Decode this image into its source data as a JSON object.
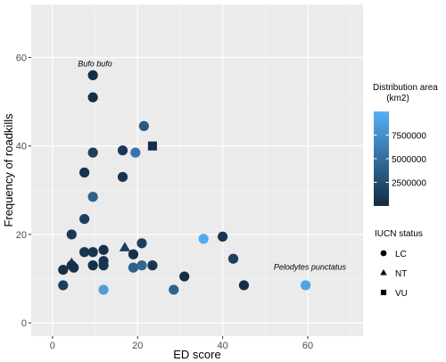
{
  "chart_data": {
    "type": "scatter",
    "xlabel": "ED score",
    "ylabel": "Frequency of roadkills",
    "xlim": [
      -5,
      73
    ],
    "ylim": [
      -3,
      72
    ],
    "x_ticks": [
      0,
      20,
      40,
      60
    ],
    "y_ticks": [
      0,
      20,
      40,
      60
    ],
    "grid": true,
    "panel_color": "#ebebeb",
    "annotations": [
      {
        "text": "Bufo bufo",
        "x": 10,
        "y": 58
      },
      {
        "text": "Pelodytes punctatus",
        "x": 60.5,
        "y": 12
      }
    ],
    "color_legend": {
      "title": "Distribution area\n(km2)",
      "min": 0,
      "max": 10000000,
      "low_color": "#132b43",
      "high_color": "#56b1f7",
      "breaks": [
        2500000,
        5000000,
        7500000
      ],
      "labels": [
        "2500000",
        "5000000",
        "7500000"
      ]
    },
    "shape_legend": {
      "title": "IUCN status",
      "items": [
        {
          "label": "LC",
          "shape": "circle"
        },
        {
          "label": "NT",
          "shape": "triangle"
        },
        {
          "label": "VU",
          "shape": "square"
        }
      ]
    },
    "points": [
      {
        "x": 9.5,
        "y": 56,
        "status": "LC",
        "area": 300000
      },
      {
        "x": 9.5,
        "y": 51,
        "status": "LC",
        "area": 300000
      },
      {
        "x": 21.5,
        "y": 44.5,
        "status": "LC",
        "area": 3500000
      },
      {
        "x": 23.5,
        "y": 40,
        "status": "VU",
        "area": 300000
      },
      {
        "x": 9.5,
        "y": 38.5,
        "status": "LC",
        "area": 1500000
      },
      {
        "x": 16.5,
        "y": 39,
        "status": "LC",
        "area": 1000000
      },
      {
        "x": 19.5,
        "y": 38.5,
        "status": "LC",
        "area": 5500000
      },
      {
        "x": 7.5,
        "y": 34,
        "status": "LC",
        "area": 500000
      },
      {
        "x": 16.5,
        "y": 33,
        "status": "LC",
        "area": 600000
      },
      {
        "x": 9.5,
        "y": 28.5,
        "status": "LC",
        "area": 4000000
      },
      {
        "x": 7.5,
        "y": 23.5,
        "status": "LC",
        "area": 1500000
      },
      {
        "x": 4.5,
        "y": 20,
        "status": "LC",
        "area": 1000000
      },
      {
        "x": 21,
        "y": 18,
        "status": "LC",
        "area": 1500000
      },
      {
        "x": 17,
        "y": 17,
        "status": "NT",
        "area": 1500000
      },
      {
        "x": 7.5,
        "y": 16,
        "status": "LC",
        "area": 800000
      },
      {
        "x": 9.5,
        "y": 16,
        "status": "LC",
        "area": 600000
      },
      {
        "x": 12,
        "y": 16.5,
        "status": "LC",
        "area": 400000
      },
      {
        "x": 19,
        "y": 15.5,
        "status": "LC",
        "area": 400000
      },
      {
        "x": 35.5,
        "y": 19,
        "status": "LC",
        "area": 9500000
      },
      {
        "x": 40,
        "y": 19.5,
        "status": "LC",
        "area": 800000
      },
      {
        "x": 42.5,
        "y": 14.5,
        "status": "LC",
        "area": 1500000
      },
      {
        "x": 4.5,
        "y": 13.5,
        "status": "NT",
        "area": 1500000
      },
      {
        "x": 5,
        "y": 12.5,
        "status": "LC",
        "area": 400000
      },
      {
        "x": 9.5,
        "y": 13,
        "status": "LC",
        "area": 400000
      },
      {
        "x": 12,
        "y": 14,
        "status": "LC",
        "area": 800000
      },
      {
        "x": 12,
        "y": 13,
        "status": "LC",
        "area": 600000
      },
      {
        "x": 19,
        "y": 12.5,
        "status": "LC",
        "area": 4000000
      },
      {
        "x": 21,
        "y": 13,
        "status": "LC",
        "area": 4500000
      },
      {
        "x": 23.5,
        "y": 13,
        "status": "LC",
        "area": 800000
      },
      {
        "x": 2.5,
        "y": 12,
        "status": "LC",
        "area": 400000
      },
      {
        "x": 4.5,
        "y": 13,
        "status": "LC",
        "area": 400000
      },
      {
        "x": 2.5,
        "y": 8.5,
        "status": "LC",
        "area": 1500000
      },
      {
        "x": 12,
        "y": 7.5,
        "status": "LC",
        "area": 8500000
      },
      {
        "x": 28.5,
        "y": 7.5,
        "status": "LC",
        "area": 4000000
      },
      {
        "x": 31,
        "y": 10.5,
        "status": "LC",
        "area": 300000
      },
      {
        "x": 45,
        "y": 8.5,
        "status": "LC",
        "area": 300000
      },
      {
        "x": 59.5,
        "y": 8.5,
        "status": "LC",
        "area": 9000000
      }
    ]
  }
}
